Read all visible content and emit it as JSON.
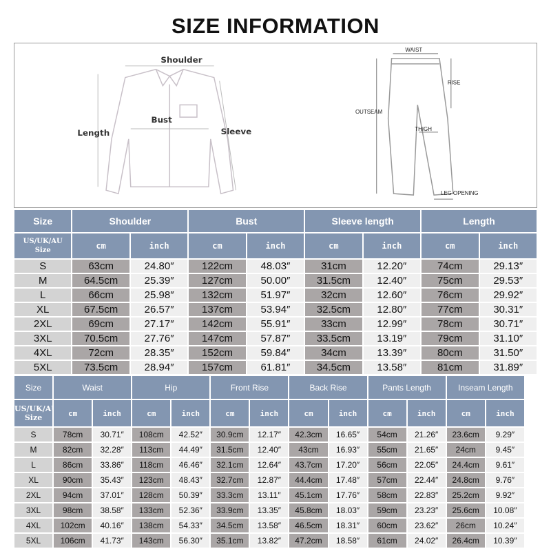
{
  "title": "SIZE INFORMATION",
  "diagram": {
    "shirt_labels": {
      "shoulder": "Shoulder",
      "bust": "Bust",
      "length": "Length",
      "sleeve": "Sleeve"
    },
    "pants_labels": {
      "waist": "WAIST",
      "rise": "RISE",
      "outseam": "OUTSEAM",
      "thigh": "THIGH",
      "leg_opening": "LEG OPENING"
    }
  },
  "colors": {
    "header": "#8396b1",
    "cm_cell": "#aaa6a6",
    "inch_cell": "#efefef",
    "size_cell": "#d3d3d3"
  },
  "top_table": {
    "size_header": "Size",
    "size_subheader": [
      "US/UK/AU",
      "Size"
    ],
    "unit_labels": {
      "cm": "cm",
      "inch": "inch"
    },
    "columns": [
      "Shoulder",
      "Bust",
      "Sleeve length",
      "Length"
    ],
    "rows": [
      {
        "size": "S",
        "values": [
          "63cm",
          "24.80″",
          "122cm",
          "48.03″",
          "31cm",
          "12.20″",
          "74cm",
          "29.13″"
        ]
      },
      {
        "size": "M",
        "values": [
          "64.5cm",
          "25.39″",
          "127cm",
          "50.00″",
          "31.5cm",
          "12.40″",
          "75cm",
          "29.53″"
        ]
      },
      {
        "size": "L",
        "values": [
          "66cm",
          "25.98″",
          "132cm",
          "51.97″",
          "32cm",
          "12.60″",
          "76cm",
          "29.92″"
        ]
      },
      {
        "size": "XL",
        "values": [
          "67.5cm",
          "26.57″",
          "137cm",
          "53.94″",
          "32.5cm",
          "12.80″",
          "77cm",
          "30.31″"
        ]
      },
      {
        "size": "2XL",
        "values": [
          "69cm",
          "27.17″",
          "142cm",
          "55.91″",
          "33cm",
          "12.99″",
          "78cm",
          "30.71″"
        ]
      },
      {
        "size": "3XL",
        "values": [
          "70.5cm",
          "27.76″",
          "147cm",
          "57.87″",
          "33.5cm",
          "13.19″",
          "79cm",
          "31.10″"
        ]
      },
      {
        "size": "4XL",
        "values": [
          "72cm",
          "28.35″",
          "152cm",
          "59.84″",
          "34cm",
          "13.39″",
          "80cm",
          "31.50″"
        ]
      },
      {
        "size": "5XL",
        "values": [
          "73.5cm",
          "28.94″",
          "157cm",
          "61.81″",
          "34.5cm",
          "13.58″",
          "81cm",
          "31.89″"
        ]
      }
    ]
  },
  "bottom_table": {
    "size_header": "Size",
    "size_subheader": [
      "US/UK/AU",
      "Size"
    ],
    "unit_labels": {
      "cm": "cm",
      "inch": "inch"
    },
    "columns": [
      "Waist",
      "Hip",
      "Front Rise",
      "Back Rise",
      "Pants Length",
      "Inseam Length"
    ],
    "rows": [
      {
        "size": "S",
        "values": [
          "78cm",
          "30.71″",
          "108cm",
          "42.52″",
          "30.9cm",
          "12.17″",
          "42.3cm",
          "16.65″",
          "54cm",
          "21.26″",
          "23.6cm",
          "9.29″"
        ]
      },
      {
        "size": "M",
        "values": [
          "82cm",
          "32.28″",
          "113cm",
          "44.49″",
          "31.5cm",
          "12.40″",
          "43cm",
          "16.93″",
          "55cm",
          "21.65″",
          "24cm",
          "9.45″"
        ]
      },
      {
        "size": "L",
        "values": [
          "86cm",
          "33.86″",
          "118cm",
          "46.46″",
          "32.1cm",
          "12.64″",
          "43.7cm",
          "17.20″",
          "56cm",
          "22.05″",
          "24.4cm",
          "9.61″"
        ]
      },
      {
        "size": "XL",
        "values": [
          "90cm",
          "35.43″",
          "123cm",
          "48.43″",
          "32.7cm",
          "12.87″",
          "44.4cm",
          "17.48″",
          "57cm",
          "22.44″",
          "24.8cm",
          "9.76″"
        ]
      },
      {
        "size": "2XL",
        "values": [
          "94cm",
          "37.01″",
          "128cm",
          "50.39″",
          "33.3cm",
          "13.11″",
          "45.1cm",
          "17.76″",
          "58cm",
          "22.83″",
          "25.2cm",
          "9.92″"
        ]
      },
      {
        "size": "3XL",
        "values": [
          "98cm",
          "38.58″",
          "133cm",
          "52.36″",
          "33.9cm",
          "13.35″",
          "45.8cm",
          "18.03″",
          "59cm",
          "23.23″",
          "25.6cm",
          "10.08″"
        ]
      },
      {
        "size": "4XL",
        "values": [
          "102cm",
          "40.16″",
          "138cm",
          "54.33″",
          "34.5cm",
          "13.58″",
          "46.5cm",
          "18.31″",
          "60cm",
          "23.62″",
          "26cm",
          "10.24″"
        ]
      },
      {
        "size": "5XL",
        "values": [
          "106cm",
          "41.73″",
          "143cm",
          "56.30″",
          "35.1cm",
          "13.82″",
          "47.2cm",
          "18.58″",
          "61cm",
          "24.02″",
          "26.4cm",
          "10.39″"
        ]
      }
    ]
  }
}
